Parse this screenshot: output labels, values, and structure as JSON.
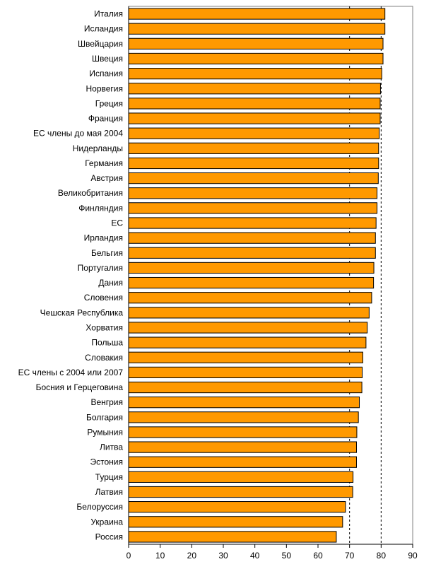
{
  "chart_data": {
    "type": "bar",
    "orientation": "horizontal",
    "categories": [
      "Италия",
      "Исландия",
      "Швейцария",
      "Швеция",
      "Испания",
      "Норвегия",
      "Греция",
      "Франция",
      "ЕС члены до мая 2004",
      "Нидерланды",
      "Германия",
      "Австрия",
      "Великобритания",
      "Финляндия",
      "ЕС",
      "Ирландия",
      "Бельгия",
      "Португалия",
      "Дания",
      "Словения",
      "Чешская Республика",
      "Хорватия",
      "Польша",
      "Словакия",
      "ЕС члены с 2004 или 2007",
      "Босния и Герцеговина",
      "Венгрия",
      "Болгария",
      "Румыния",
      "Литва",
      "Эстония",
      "Турция",
      "Латвия",
      "Белоруссия",
      "Украина",
      "Россия"
    ],
    "values": [
      81.2,
      81.2,
      80.6,
      80.6,
      80.2,
      79.8,
      79.7,
      79.7,
      79.4,
      79.2,
      79.2,
      79.1,
      78.7,
      78.7,
      78.4,
      78.2,
      78.2,
      77.7,
      77.6,
      77.0,
      76.2,
      75.6,
      75.2,
      74.2,
      74.0,
      73.9,
      73.1,
      72.8,
      72.3,
      72.2,
      72.2,
      71.1,
      71.0,
      68.7,
      67.8,
      65.8
    ],
    "xlim": [
      0,
      90
    ],
    "xticks": [
      "0",
      "10",
      "20",
      "30",
      "40",
      "50",
      "60",
      "70",
      "80",
      "90"
    ],
    "reference_lines": [
      70,
      80
    ],
    "title": "",
    "xlabel": "",
    "ylabel": "",
    "bar_color": "#FF9900",
    "bar_edge_color": "#000000",
    "grid": false
  }
}
